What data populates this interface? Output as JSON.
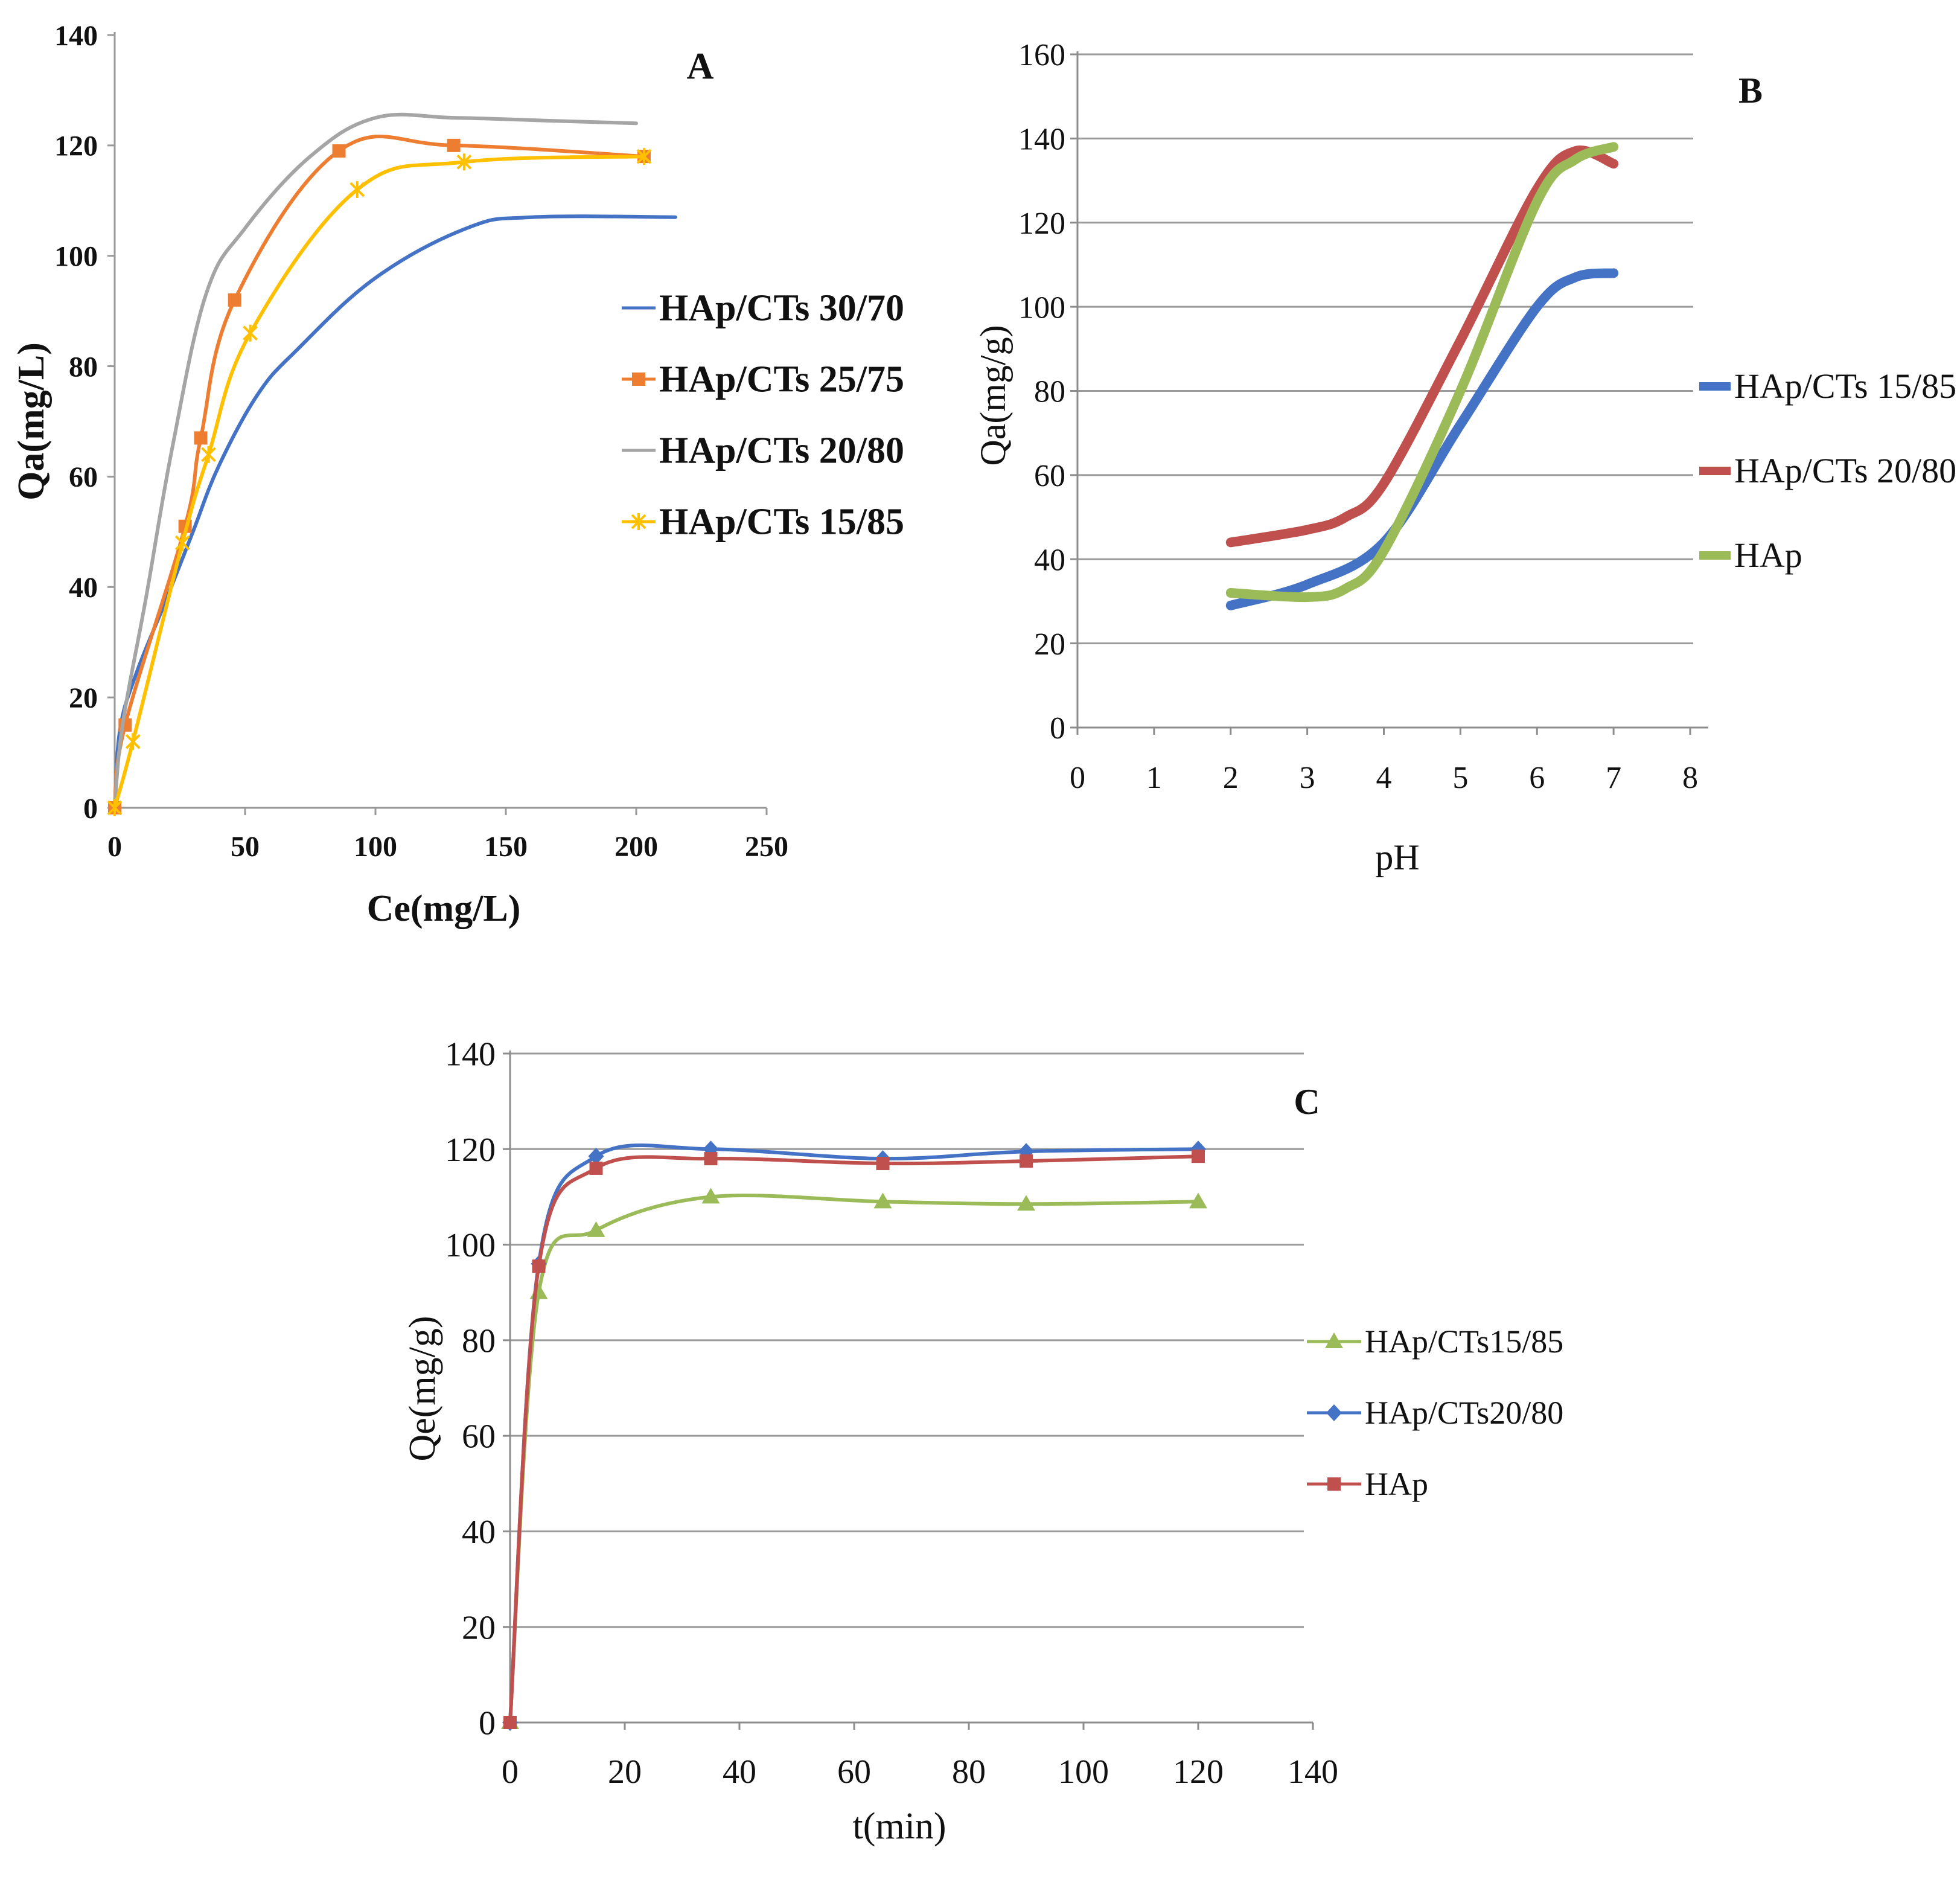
{
  "chart_data": [
    {
      "id": "A",
      "type": "line",
      "panel_label": "A",
      "title": "",
      "xlabel": "Ce(mg/L)",
      "ylabel": "Qa(mg/L)",
      "xlim": [
        0,
        250
      ],
      "ylim": [
        0,
        140
      ],
      "xticks": [
        0,
        50,
        100,
        150,
        200,
        250
      ],
      "yticks": [
        0,
        20,
        40,
        60,
        80,
        100,
        120,
        140
      ],
      "grid": false,
      "legend_position": "right",
      "series": [
        {
          "name": "HAp/CTs 30/70",
          "color": "#4472c4",
          "marker": "none",
          "x": [
            0,
            2,
            8,
            20,
            30,
            40,
            55,
            70,
            100,
            135,
            160,
            215
          ],
          "y": [
            0,
            14,
            24,
            38,
            50,
            62,
            75,
            83,
            96,
            105,
            107,
            107
          ]
        },
        {
          "name": "HAp/CTs 25/75",
          "color": "#ed7d31",
          "marker": "square",
          "x": [
            0,
            4,
            27,
            33,
            46,
            86,
            130,
            203
          ],
          "y": [
            0,
            15,
            51,
            67,
            92,
            119,
            120,
            118
          ]
        },
        {
          "name": "HAp/CTs 20/80",
          "color": "#a5a5a5",
          "marker": "none",
          "x": [
            0,
            3,
            12,
            22,
            35,
            50,
            75,
            100,
            130,
            165,
            200
          ],
          "y": [
            0,
            15,
            38,
            65,
            93,
            105,
            118,
            125,
            125,
            124.5,
            124
          ]
        },
        {
          "name": "HAp/CTs 15/85",
          "color": "#ffc000",
          "marker": "x",
          "x": [
            0,
            7,
            26,
            36,
            52,
            93,
            134,
            203
          ],
          "y": [
            0,
            12,
            48,
            64,
            86,
            112,
            117,
            118
          ]
        }
      ]
    },
    {
      "id": "B",
      "type": "line",
      "panel_label": "B",
      "title": "",
      "xlabel": "pH",
      "ylabel": "Qa(mg/g)",
      "xlim": [
        0,
        8
      ],
      "ylim": [
        0,
        160
      ],
      "xticks": [
        0,
        1,
        2,
        3,
        4,
        5,
        6,
        7,
        8
      ],
      "yticks": [
        0,
        20,
        40,
        60,
        80,
        100,
        120,
        140,
        160
      ],
      "grid": true,
      "legend_position": "right",
      "series": [
        {
          "name": "HAp/CTs 15/85",
          "color": "#4472c4",
          "marker": "none",
          "x": [
            2,
            3,
            4,
            5,
            6,
            6.5,
            7
          ],
          "y": [
            29,
            34,
            44,
            72,
            100,
            107,
            108
          ]
        },
        {
          "name": "HAp/CTs 20/80",
          "color": "#c0504d",
          "marker": "none",
          "x": [
            2,
            3,
            3.5,
            4,
            5,
            6,
            6.5,
            7
          ],
          "y": [
            44,
            47,
            50,
            58,
            92,
            128,
            137,
            134
          ]
        },
        {
          "name": "HAp",
          "color": "#9bbb59",
          "marker": "none",
          "x": [
            2,
            3,
            3.5,
            4,
            5,
            6,
            6.5,
            7
          ],
          "y": [
            32,
            31,
            33,
            42,
            80,
            125,
            135,
            138
          ]
        }
      ]
    },
    {
      "id": "C",
      "type": "line",
      "panel_label": "C",
      "title": "",
      "xlabel": "t(min)",
      "ylabel": "Qe(mg/g)",
      "xlim": [
        0,
        140
      ],
      "ylim": [
        0,
        140
      ],
      "xticks": [
        0,
        20,
        40,
        60,
        80,
        100,
        120,
        140
      ],
      "yticks": [
        0,
        20,
        40,
        60,
        80,
        100,
        120,
        140
      ],
      "grid": true,
      "legend_position": "right",
      "series": [
        {
          "name": "HAp/CTs15/85",
          "color": "#9bbb59",
          "marker": "triangle",
          "x": [
            0,
            5,
            15,
            35,
            65,
            90,
            120
          ],
          "y": [
            0,
            90,
            103,
            110,
            109,
            108.5,
            109
          ]
        },
        {
          "name": "HAp/CTs20/80",
          "color": "#4472c4",
          "marker": "diamond",
          "x": [
            0,
            5,
            15,
            35,
            65,
            90,
            120
          ],
          "y": [
            0,
            96,
            118.5,
            120,
            118,
            119.5,
            120
          ]
        },
        {
          "name": "HAp",
          "color": "#c0504d",
          "marker": "square",
          "x": [
            0,
            5,
            15,
            35,
            65,
            90,
            120
          ],
          "y": [
            0,
            95.5,
            116,
            118,
            117,
            117.5,
            118.5
          ]
        }
      ]
    }
  ]
}
